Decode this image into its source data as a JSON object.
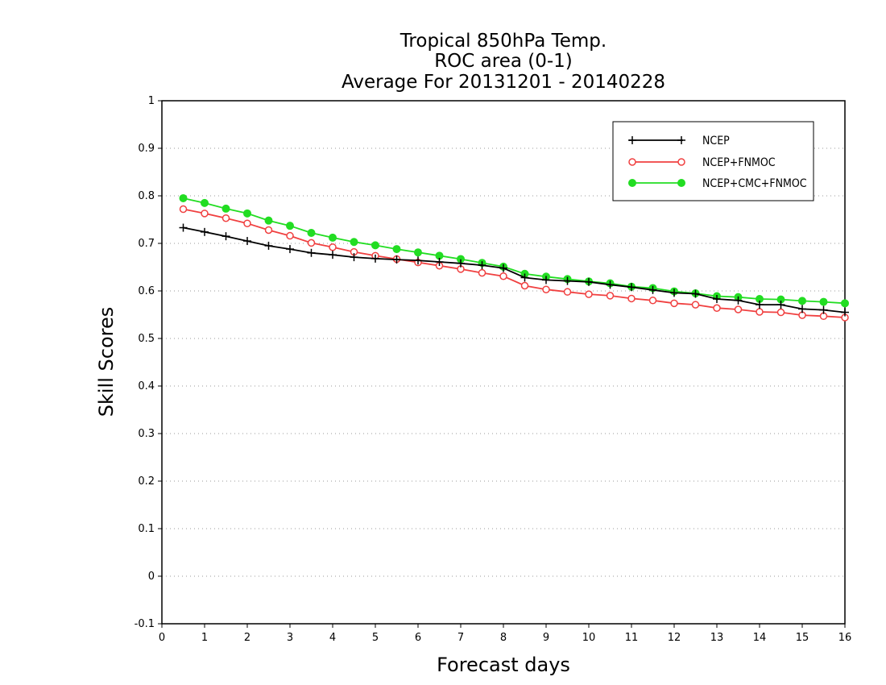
{
  "chart_data": {
    "type": "line",
    "title_lines": [
      "Tropical 850hPa Temp.",
      "ROC area (0-1)",
      "Average For 20131201 - 20140228"
    ],
    "xlabel": "Forecast days",
    "ylabel": "Skill Scores",
    "xlim": [
      0,
      16
    ],
    "ylim": [
      -0.1,
      1
    ],
    "xticks": [
      "0",
      "1",
      "2",
      "3",
      "4",
      "5",
      "6",
      "7",
      "8",
      "9",
      "10",
      "11",
      "12",
      "13",
      "14",
      "15",
      "16"
    ],
    "yticks": [
      "-0.1",
      "0",
      "0.1",
      "0.2",
      "0.3",
      "0.4",
      "0.5",
      "0.6",
      "0.7",
      "0.8",
      "0.9",
      "1"
    ],
    "grid": "horizontal dotted",
    "legend_position": "top-right",
    "x": [
      0.5,
      1,
      1.5,
      2,
      2.5,
      3,
      3.5,
      4,
      4.5,
      5,
      5.5,
      6,
      6.5,
      7,
      7.5,
      8,
      8.5,
      9,
      9.5,
      10,
      10.5,
      11,
      11.5,
      12,
      12.5,
      13,
      13.5,
      14,
      14.5,
      15,
      15.5,
      16
    ],
    "series": [
      {
        "name": "NCEP",
        "color": "#000000",
        "marker": "plus",
        "values": [
          0.733,
          0.724,
          0.715,
          0.705,
          0.695,
          0.688,
          0.68,
          0.676,
          0.671,
          0.668,
          0.666,
          0.664,
          0.661,
          0.658,
          0.654,
          0.648,
          0.628,
          0.623,
          0.621,
          0.619,
          0.613,
          0.608,
          0.602,
          0.596,
          0.594,
          0.583,
          0.58,
          0.571,
          0.571,
          0.562,
          0.56,
          0.555
        ]
      },
      {
        "name": "NCEP+FNMOC",
        "color": "#f04040",
        "marker": "open-circle",
        "values": [
          0.772,
          0.763,
          0.753,
          0.742,
          0.728,
          0.716,
          0.701,
          0.692,
          0.682,
          0.674,
          0.667,
          0.66,
          0.653,
          0.646,
          0.638,
          0.631,
          0.611,
          0.603,
          0.598,
          0.593,
          0.59,
          0.584,
          0.58,
          0.574,
          0.571,
          0.564,
          0.561,
          0.556,
          0.555,
          0.549,
          0.547,
          0.544
        ]
      },
      {
        "name": "NCEP+CMC+FNMOC",
        "color": "#22dd22",
        "marker": "filled-circle",
        "values": [
          0.795,
          0.785,
          0.773,
          0.763,
          0.748,
          0.737,
          0.722,
          0.712,
          0.703,
          0.696,
          0.688,
          0.681,
          0.674,
          0.667,
          0.659,
          0.651,
          0.636,
          0.63,
          0.625,
          0.62,
          0.616,
          0.609,
          0.606,
          0.599,
          0.595,
          0.589,
          0.587,
          0.583,
          0.582,
          0.579,
          0.577,
          0.574
        ]
      }
    ]
  }
}
